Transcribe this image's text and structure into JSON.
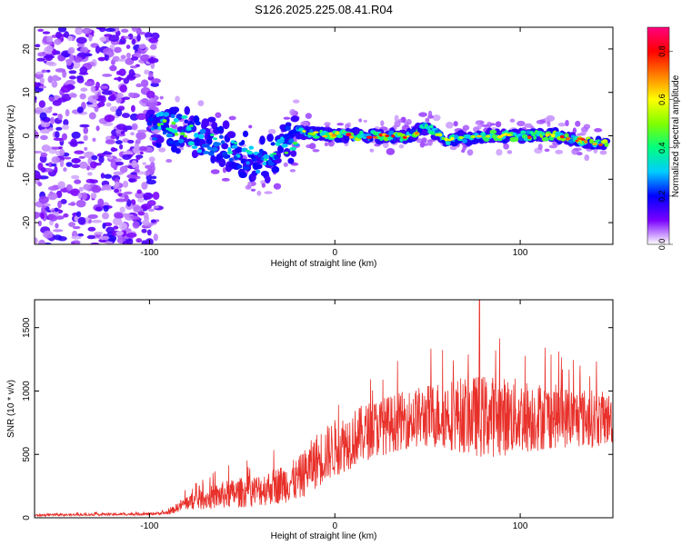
{
  "title": "S126.2025.225.08.41.R04",
  "chart_data": [
    {
      "type": "heatmap",
      "xlabel": "Height of straight line (km)",
      "ylabel": "Frequency (Hz)",
      "xlim": [
        -162,
        150
      ],
      "ylim": [
        -25,
        25
      ],
      "xticks": [
        -100,
        0,
        100
      ],
      "xtick_labels": [
        "-100",
        "0",
        "100"
      ],
      "yticks": [
        -20,
        -10,
        0,
        10,
        20
      ],
      "ytick_labels": [
        "-20",
        "-10",
        "0",
        "10",
        "20"
      ],
      "colorbar": {
        "label": "Normalized spectral amplitude",
        "range": [
          0.0,
          0.9
        ],
        "ticks": [
          0.0,
          0.2,
          0.4,
          0.6,
          0.8
        ],
        "tick_labels": [
          "0.0",
          "0.2",
          "0.4",
          "0.6",
          "0.8"
        ],
        "colormap": [
          "#ffffff",
          "#7a00ff",
          "#0000ff",
          "#00ccff",
          "#00ff80",
          "#80ff00",
          "#ffff00",
          "#ff8000",
          "#ff0000",
          "#ff0080"
        ]
      },
      "signal_track": {
        "height_km": [
          -100,
          -80,
          -60,
          -40,
          -30,
          -20,
          0,
          20,
          40,
          50,
          60,
          80,
          100,
          120,
          145
        ],
        "frequency_hz": [
          3,
          1,
          -2,
          -6,
          -4,
          1,
          0,
          0,
          0,
          2,
          -1,
          0,
          0,
          0,
          -2
        ],
        "peak_amplitude": [
          0.5,
          0.5,
          0.4,
          0.45,
          0.5,
          0.55,
          0.85,
          0.85,
          0.8,
          0.7,
          0.6,
          0.65,
          0.75,
          0.8,
          0.85
        ]
      },
      "noise_region_km": [
        -162,
        -95
      ]
    },
    {
      "type": "line",
      "xlabel": "Height of straight line (km)",
      "ylabel": "SNR (10 * v/v)",
      "xlim": [
        -162,
        150
      ],
      "ylim": [
        0,
        1720
      ],
      "xticks": [
        -100,
        0,
        100
      ],
      "xtick_labels": [
        "-100",
        "0",
        "100"
      ],
      "yticks": [
        0,
        500,
        1000,
        1500
      ],
      "ytick_labels": [
        "0",
        "500",
        "1000",
        "1500"
      ],
      "line_color": "#e8302a",
      "envelope": {
        "height_km": [
          -162,
          -100,
          -90,
          -80,
          -60,
          -40,
          -20,
          -10,
          0,
          20,
          40,
          60,
          80,
          100,
          120,
          140,
          150
        ],
        "mean_snr": [
          20,
          30,
          40,
          120,
          180,
          220,
          300,
          450,
          550,
          700,
          780,
          820,
          800,
          800,
          800,
          780,
          780
        ],
        "fluctuation": [
          8,
          10,
          15,
          60,
          110,
          130,
          170,
          220,
          230,
          230,
          230,
          280,
          330,
          300,
          250,
          230,
          200
        ]
      },
      "peak": {
        "height_km": 78,
        "snr": 1720
      }
    }
  ]
}
